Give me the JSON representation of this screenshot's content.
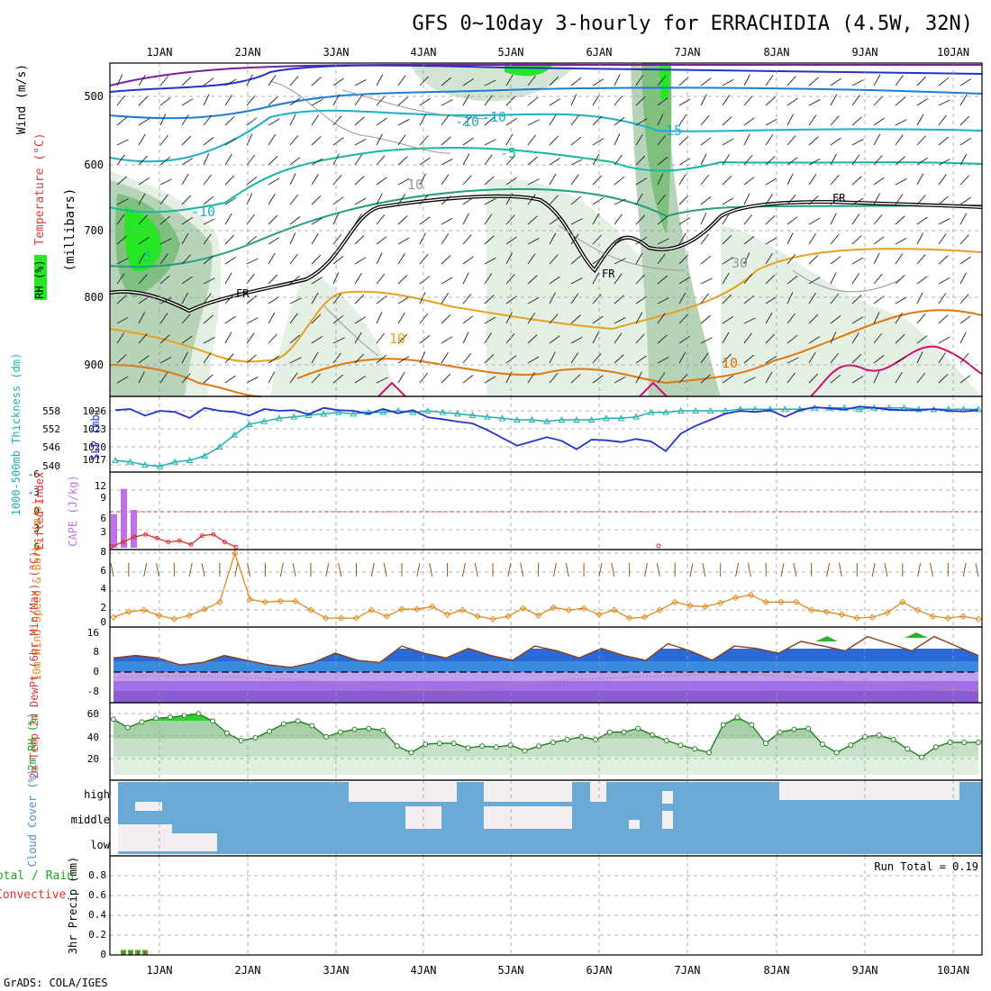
{
  "title": "GFS 0~10day 3-hourly for ERRACHIDIA (4.5W, 32N)",
  "footer": "GrADS: COLA/IGES",
  "colors": {
    "temp_warm": "#e08a1e",
    "temp_cold": "#1ab0c8",
    "slp": "#2233cc",
    "thick": "#20b0b0",
    "cape": "#c070e8",
    "li": "#e03030",
    "wind": "#e08a1e",
    "rh": "#20a020",
    "cloud": "#6aaad6",
    "cloud_clear": "#f2eef2"
  },
  "chart_data": {
    "type": "meteogram",
    "days": [
      "1JAN",
      "2JAN",
      "3JAN",
      "4JAN",
      "5JAN",
      "6JAN",
      "7JAN",
      "8JAN",
      "9JAN",
      "10JAN"
    ],
    "upper_air": {
      "ylabel": "(millibars)",
      "yticks": [
        "500",
        "600",
        "700",
        "800",
        "900"
      ],
      "side_labels": {
        "wind": "Wind (m/s)",
        "temp": "Temperature (°C)",
        "rh": "RH (%)"
      },
      "contour_labels": [
        "-10",
        "-5",
        "-15",
        "-10",
        "-5",
        "10",
        "-10",
        "30",
        "10",
        "10",
        "FR",
        "FR",
        "FR"
      ]
    },
    "slp_thickness": {
      "ylabel_left": "1000-500mb Thickness (dm)",
      "ylabel_right": "SLP (mb)",
      "thickness_ticks": [
        "558",
        "552",
        "546",
        "540"
      ],
      "slp_ticks": [
        "1026",
        "1023",
        "1020",
        "1017"
      ],
      "slp": [
        1026.1,
        1026.3,
        1025.2,
        1026.0,
        1025.8,
        1024.8,
        1026.5,
        1026.0,
        1025.8,
        1025.2,
        1026.3,
        1026.0,
        1026.1,
        1025.4,
        1026.5,
        1026.1,
        1026.0,
        1025.5,
        1026.3,
        1025.6,
        1026.1,
        1024.9,
        1024.6,
        1024.2,
        1023.9,
        1022.8,
        1021.5,
        1020.2,
        1020.9,
        1021.6,
        1021.0,
        1019.6,
        1021.2,
        1021.1,
        1020.8,
        1021.3,
        1020.9,
        1019.3,
        1022.2,
        1023.5,
        1024.5,
        1025.5,
        1026.0,
        1025.8,
        1026.1,
        1025.0,
        1026.1,
        1026.6,
        1026.4,
        1026.2,
        1026.7,
        1026.5,
        1026.2,
        1026.1,
        1026.1,
        1026.3,
        1026.0,
        1025.9,
        1026.1
      ],
      "thickness": [
        541.5,
        541,
        540,
        539.5,
        541,
        541.5,
        543,
        546,
        550,
        553.5,
        554.5,
        555.5,
        556,
        556.5,
        557,
        557.5,
        557,
        557.5,
        557.5,
        558,
        557.5,
        558,
        557.5,
        557,
        556.5,
        556,
        555.5,
        555,
        555,
        554.5,
        555,
        555,
        555,
        555.5,
        555.5,
        556,
        557.5,
        557.5,
        558,
        558,
        558,
        558,
        558.5,
        558.5,
        558.5,
        558.5,
        558.5,
        559,
        559,
        559,
        558.5,
        559,
        559,
        559,
        558.5,
        558.5,
        558.5,
        558.5,
        558.5
      ]
    },
    "cape_li": {
      "ylabel_left": "Lifted Index",
      "ylabel_right": "CAPE (J/kg)",
      "li_ticks": [
        "6",
        "3",
        "0",
        "-3",
        "-6"
      ],
      "cape_ticks": [
        "12",
        "9",
        "6",
        "3"
      ],
      "cape": [
        8,
        14,
        9,
        0,
        0,
        0,
        0,
        0,
        0,
        0
      ],
      "li": [
        5.5,
        4.8,
        4,
        3.6,
        4.2,
        4.8,
        4.6,
        5.2,
        3.8,
        3.6,
        4.8,
        5.6
      ]
    },
    "wind10m": {
      "ylabel": "10m Wind Speed & Barbs (m/s)",
      "yticks": [
        "8",
        "6",
        "4",
        "2",
        "0"
      ],
      "speed": [
        0.8,
        1.4,
        1.6,
        1.0,
        0.6,
        1.0,
        1.7,
        2.5,
        8.0,
        2.8,
        2.5,
        2.6,
        2.6,
        1.6,
        0.7,
        0.7,
        0.7,
        1.6,
        0.9,
        1.7,
        1.7,
        2.0,
        1.1,
        1.6,
        0.9,
        0.6,
        0.9,
        1.8,
        1.0,
        1.9,
        1.6,
        1.8,
        1.1,
        1.6,
        0.7,
        0.8,
        1.6,
        2.5,
        2.1,
        2.0,
        2.4,
        3.0,
        3.3,
        2.5,
        2.5,
        2.5,
        1.6,
        1.4,
        1.1,
        0.7,
        0.8,
        1.3,
        2.5,
        1.6,
        0.9,
        0.7,
        0.9,
        0.6
      ]
    },
    "temp2m": {
      "ylabel": "2m Temp 2m DewPt (6hr Min/Max) (°C)",
      "yticks": [
        "16",
        "8",
        "0",
        "-8"
      ],
      "temp": [
        6,
        7,
        6,
        3,
        4,
        7,
        5,
        3,
        2,
        4,
        8,
        5,
        4,
        11,
        8,
        6,
        10,
        7,
        5,
        11,
        9,
        6,
        10,
        7,
        5,
        12,
        9,
        5,
        11,
        10,
        8,
        13,
        11,
        9,
        15,
        12,
        9,
        15,
        11,
        7
      ]
    },
    "rh2m": {
      "ylabel": "2m RH (%)",
      "yticks": [
        "60",
        "40",
        "20"
      ],
      "rh": [
        58,
        49,
        55,
        59,
        60,
        62,
        64,
        56,
        43,
        35,
        38,
        45,
        53,
        56,
        51,
        39,
        44,
        47,
        48,
        46,
        29,
        22,
        31,
        32,
        32,
        27,
        29,
        28,
        30,
        24,
        29,
        33,
        36,
        39,
        36,
        44,
        44,
        48,
        41,
        35,
        30,
        26,
        22,
        52,
        60,
        52,
        32,
        44,
        47,
        48,
        31,
        22,
        30,
        39,
        41,
        36,
        26,
        17,
        28,
        33,
        33,
        33
      ]
    },
    "cloud": {
      "ylabel": "Cloud Cover (%)",
      "levels": [
        "high",
        "middle",
        "low"
      ]
    },
    "precip": {
      "ylabel": "3hr Precip (mm)",
      "side_labels": [
        "Total / Rain",
        "Convective"
      ],
      "yticks": [
        "0.8",
        "0.6",
        "0.4",
        "0.2",
        "0"
      ],
      "run_total": "Run Total = 0.19",
      "bars": [
        0.05,
        0.05,
        0.05,
        0.05
      ]
    }
  }
}
